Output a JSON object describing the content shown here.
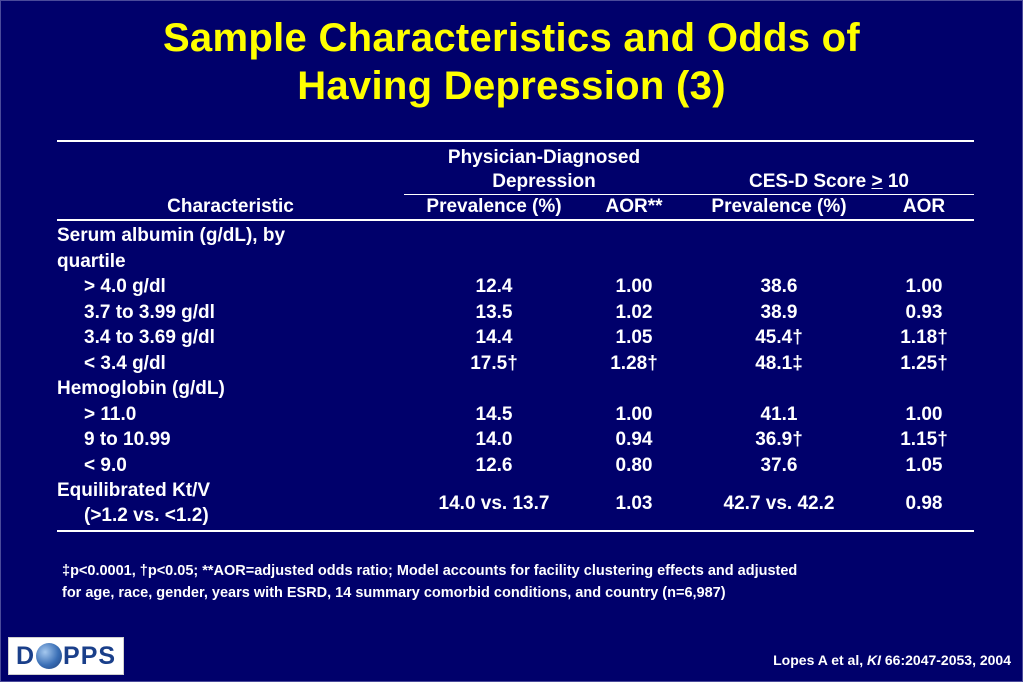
{
  "slide": {
    "title_line1": "Sample Characteristics and Odds of",
    "title_line2": "Having Depression (3)"
  },
  "table": {
    "group1_line1": "Physician-Diagnosed",
    "group1_line2": "Depression",
    "group2_prefix": "CES-D Score ",
    "group2_symbol": ">",
    "group2_suffix": " 10",
    "col_characteristic": "Characteristic",
    "col_prev1": "Prevalence (%)",
    "col_aor1": "AOR**",
    "col_prev2": "Prevalence (%)",
    "col_aor2": "AOR",
    "serum_header_line1": "Serum albumin (g/dL), by",
    "serum_header_line2": "quartile",
    "hemo_header": "Hemoglobin (g/dL)",
    "rows": [
      {
        "label": "> 4.0 g/dl",
        "prev1": "12.4",
        "aor1": "1.00",
        "prev2": "38.6",
        "aor2": "1.00"
      },
      {
        "label": "3.7 to 3.99 g/dl",
        "prev1": "13.5",
        "aor1": "1.02",
        "prev2": "38.9",
        "aor2": "0.93"
      },
      {
        "label": "3.4 to 3.69 g/dl",
        "prev1": "14.4",
        "aor1": "1.05",
        "prev2": "45.4†",
        "aor2": "1.18†"
      },
      {
        "label": "< 3.4 g/dl",
        "prev1": "17.5†",
        "aor1": "1.28†",
        "prev2": "48.1‡",
        "aor2": "1.25†"
      },
      {
        "label": "> 11.0",
        "prev1": "14.5",
        "aor1": "1.00",
        "prev2": "41.1",
        "aor2": "1.00"
      },
      {
        "label": "9 to 10.99",
        "prev1": "14.0",
        "aor1": "0.94",
        "prev2": "36.9†",
        "aor2": "1.15†"
      },
      {
        "label": "< 9.0",
        "prev1": "12.6",
        "aor1": "0.80",
        "prev2": "37.6",
        "aor2": "1.05"
      },
      {
        "label_line1": "Equilibrated Kt/V",
        "label_line2": "(>1.2 vs. <1.2)",
        "prev1": "14.0 vs. 13.7",
        "aor1": "1.03",
        "prev2": "42.7 vs. 42.2",
        "aor2": "0.98"
      }
    ]
  },
  "footnote": {
    "line1": "‡p<0.0001, †p<0.05; **AOR=adjusted odds ratio;  Model accounts for facility clustering effects and adjusted",
    "line2": "for age, race, gender, years with ESRD, 14 summary comorbid conditions, and country (n=6,987)"
  },
  "logo": {
    "left": "D",
    "right": "PPS"
  },
  "citation": {
    "before": "Lopes A et al, ",
    "journal": "KI",
    "after": " 66:2047-2053, 2004"
  },
  "colors": {
    "background": "#00006b",
    "title": "#ffff00",
    "text": "#ffffff"
  }
}
